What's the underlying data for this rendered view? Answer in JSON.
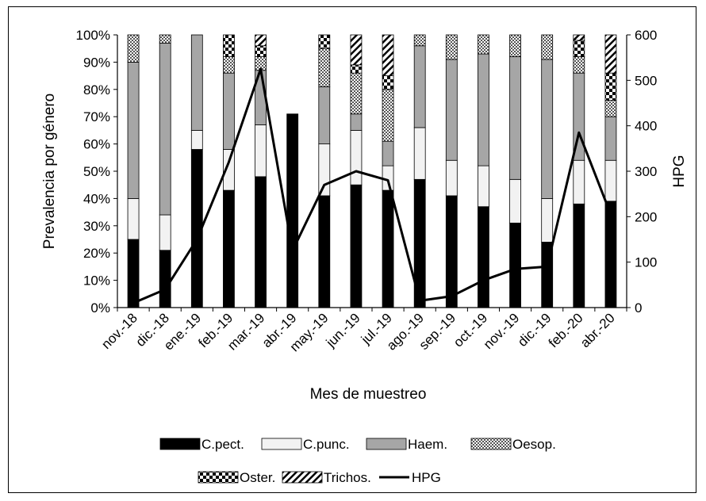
{
  "chart_data": {
    "type": "bar",
    "stacked": true,
    "normalized_percent": true,
    "title": "",
    "xlabel": "Mes de muestreo",
    "ylabel": "Prevalencia por género",
    "y2label": "HPG",
    "ylim": [
      0,
      100
    ],
    "y2lim": [
      0,
      600
    ],
    "yticks": [
      "0%",
      "10%",
      "20%",
      "30%",
      "40%",
      "50%",
      "60%",
      "70%",
      "80%",
      "90%",
      "100%"
    ],
    "y2ticks": [
      "0",
      "100",
      "200",
      "300",
      "400",
      "500",
      "600"
    ],
    "grid": false,
    "legend_position": "bottom",
    "categories": [
      "nov.-18",
      "dic.-18",
      "ene.-19",
      "feb.-19",
      "mar.-19",
      "abr.-19",
      "may.-19",
      "jun.-19",
      "jul.-19",
      "ago.-19",
      "sep.-19",
      "oct.-19",
      "nov.-19",
      "dic.-19",
      "feb.-20",
      "abr.-20"
    ],
    "series": [
      {
        "name": "C.pect.",
        "type": "bar",
        "axis": "left",
        "fill": "#000000",
        "values": [
          25,
          21,
          58,
          43,
          48,
          71,
          41,
          45,
          43,
          47,
          41,
          37,
          31,
          24,
          38,
          39
        ]
      },
      {
        "name": "C.punc.",
        "type": "bar",
        "axis": "left",
        "fill": "#f2f2f2",
        "values": [
          15,
          13,
          7,
          15,
          19,
          0,
          19,
          20,
          9,
          19,
          13,
          15,
          16,
          16,
          16,
          15
        ]
      },
      {
        "name": "Haem.",
        "type": "bar",
        "axis": "left",
        "fill": "#a6a6a6",
        "values": [
          50,
          63,
          35,
          28,
          20,
          0,
          21,
          6,
          9,
          30,
          37,
          41,
          45,
          51,
          32,
          16
        ]
      },
      {
        "name": "Oesop.",
        "type": "bar",
        "axis": "left",
        "fill": "dots",
        "values": [
          10,
          3,
          0,
          6,
          5,
          0,
          14,
          15,
          19,
          4,
          9,
          7,
          8,
          9,
          6,
          6
        ]
      },
      {
        "name": "Oster.",
        "type": "bar",
        "axis": "left",
        "fill": "checker",
        "values": [
          0,
          0,
          0,
          8,
          4,
          0,
          5,
          3,
          5,
          0,
          0,
          0,
          0,
          0,
          6,
          10
        ]
      },
      {
        "name": "Trichos.",
        "type": "bar",
        "axis": "left",
        "fill": "diagonal",
        "values": [
          0,
          0,
          0,
          0,
          4,
          0,
          0,
          11,
          15,
          0,
          0,
          0,
          0,
          0,
          2,
          14
        ]
      },
      {
        "name": "HPG",
        "type": "line",
        "axis": "right",
        "color": "#000000",
        "values": [
          10,
          40,
          150,
          320,
          525,
          125,
          270,
          300,
          280,
          15,
          25,
          60,
          85,
          90,
          385,
          205
        ]
      }
    ]
  }
}
